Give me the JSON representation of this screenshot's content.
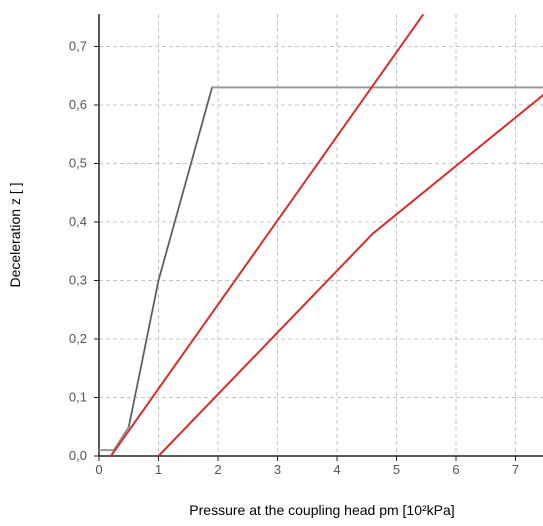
{
  "chart_data": {
    "type": "line",
    "xlabel": "Pressure at the coupling head pm [10²kPa]",
    "ylabel": "Deceleration z [ ]",
    "xlim": [
      0,
      7.5
    ],
    "ylim": [
      0,
      0.75
    ],
    "x_ticks": [
      "0",
      "1",
      "2",
      "3",
      "4",
      "5",
      "6",
      "7"
    ],
    "y_ticks": [
      "0,0",
      "0,1",
      "0,2",
      "0,3",
      "0,4",
      "0,5",
      "0,6",
      "0,7"
    ],
    "grid": true,
    "series": [
      {
        "color": "#999999",
        "points": [
          [
            0,
            0.01
          ],
          [
            0.25,
            0.01
          ],
          [
            0.5,
            0.05
          ],
          [
            1.0,
            0.3
          ],
          [
            1.9,
            0.63
          ],
          [
            7.5,
            0.63
          ]
        ]
      },
      {
        "color": "#555555",
        "points": [
          [
            0.5,
            0.05
          ],
          [
            1.0,
            0.3
          ],
          [
            1.9,
            0.63
          ]
        ]
      },
      {
        "color": "#dd2b2b",
        "points": [
          [
            0.2,
            0.0
          ],
          [
            5.45,
            0.755
          ]
        ]
      },
      {
        "color": "#dd2b2b",
        "points": [
          [
            1.0,
            0.0
          ],
          [
            4.6,
            0.38
          ],
          [
            7.5,
            0.62
          ]
        ]
      }
    ]
  }
}
